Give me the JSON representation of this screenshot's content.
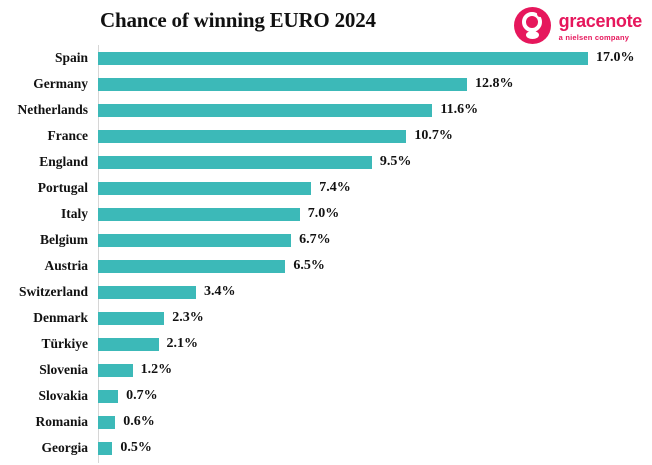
{
  "header": {
    "title": "Chance of winning EURO 2024",
    "logo": {
      "brand": "gracenote",
      "tagline": "a nielsen company",
      "brand_color": "#E6175C"
    }
  },
  "chart_data": {
    "type": "bar",
    "orientation": "horizontal",
    "title": "Chance of winning EURO 2024",
    "categories": [
      "Spain",
      "Germany",
      "Netherlands",
      "France",
      "England",
      "Portugal",
      "Italy",
      "Belgium",
      "Austria",
      "Switzerland",
      "Denmark",
      "Türkiye",
      "Slovenia",
      "Slovakia",
      "Romania",
      "Georgia"
    ],
    "values": [
      17.0,
      12.8,
      11.6,
      10.7,
      9.5,
      7.4,
      7.0,
      6.7,
      6.5,
      3.4,
      2.3,
      2.1,
      1.2,
      0.7,
      0.6,
      0.5
    ],
    "value_labels": [
      "17.0%",
      "12.8%",
      "11.6%",
      "10.7%",
      "9.5%",
      "7.4%",
      "7.0%",
      "6.7%",
      "6.5%",
      "3.4%",
      "2.3%",
      "2.1%",
      "1.2%",
      "0.7%",
      "0.6%",
      "0.5%"
    ],
    "bar_color": "#3CB9B8",
    "xlim": [
      0,
      17.5
    ],
    "grid": false,
    "legend": false,
    "value_label_position": "end-of-bar"
  },
  "layout_hints": {
    "max_value_for_scale": 17.0
  }
}
